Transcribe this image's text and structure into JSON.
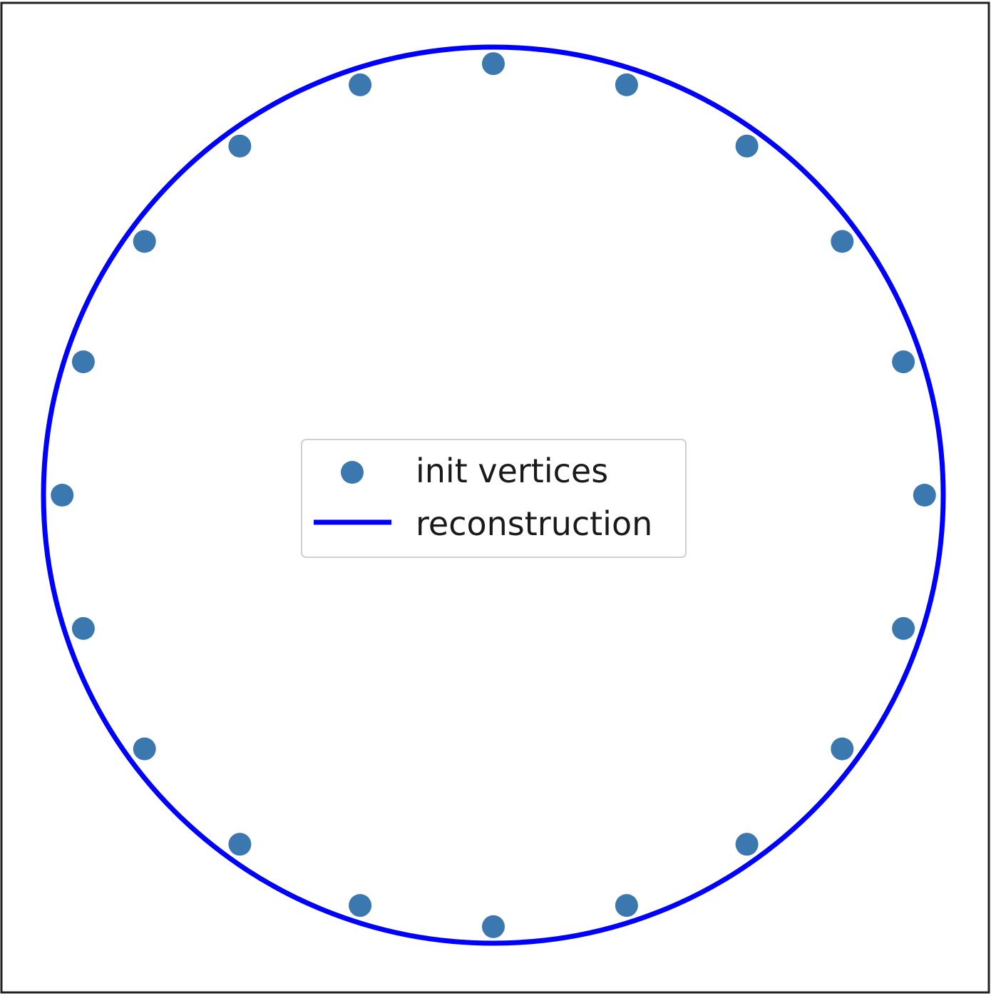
{
  "chart_data": {
    "type": "scatter",
    "title": "",
    "xlabel": "",
    "ylabel": "",
    "axes_visible": false,
    "grid": false,
    "legend": {
      "placement": "center",
      "entries": [
        {
          "label": "init vertices",
          "marker": "circle"
        },
        {
          "label": "reconstruction",
          "marker": "line"
        }
      ]
    },
    "xlim": [
      -1.05,
      1.05
    ],
    "ylim": [
      -1.05,
      1.05
    ],
    "series": [
      {
        "name": "init vertices",
        "kind": "scatter",
        "color": "#3b78b0",
        "points": [
          [
            1.0,
            0.0
          ],
          [
            0.951,
            0.309
          ],
          [
            0.809,
            0.588
          ],
          [
            0.588,
            0.809
          ],
          [
            0.309,
            0.951
          ],
          [
            0.0,
            1.0
          ],
          [
            -0.309,
            0.951
          ],
          [
            -0.588,
            0.809
          ],
          [
            -0.809,
            0.588
          ],
          [
            -0.951,
            0.309
          ],
          [
            -1.0,
            0.0
          ],
          [
            -0.951,
            -0.309
          ],
          [
            -0.809,
            -0.588
          ],
          [
            -0.588,
            -0.809
          ],
          [
            -0.309,
            -0.951
          ],
          [
            0.0,
            -1.0
          ],
          [
            0.309,
            -0.951
          ],
          [
            0.588,
            -0.809
          ],
          [
            0.809,
            -0.588
          ],
          [
            0.951,
            -0.309
          ]
        ]
      },
      {
        "name": "reconstruction",
        "kind": "line",
        "color": "#0000ff",
        "shape": "circle",
        "center": [
          0.0,
          0.0
        ],
        "radius": 1.0
      }
    ]
  }
}
